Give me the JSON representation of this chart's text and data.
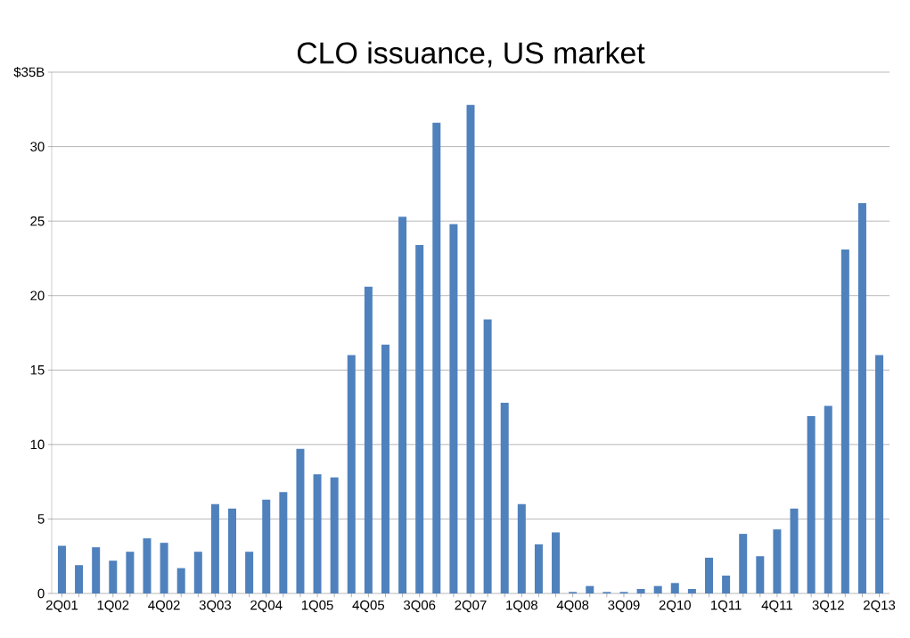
{
  "chart_data": {
    "type": "bar",
    "title": "CLO issuance, US market",
    "categories": [
      "2Q01",
      null,
      null,
      "1Q02",
      null,
      null,
      "4Q02",
      null,
      null,
      "3Q03",
      null,
      null,
      "2Q04",
      null,
      null,
      "1Q05",
      null,
      null,
      "4Q05",
      null,
      null,
      "3Q06",
      null,
      null,
      "2Q07",
      null,
      null,
      "1Q08",
      null,
      null,
      "4Q08",
      null,
      null,
      "3Q09",
      null,
      null,
      "2Q10",
      null,
      null,
      "1Q11",
      null,
      null,
      "4Q11",
      null,
      null,
      "3Q12",
      null,
      null,
      "2Q13"
    ],
    "values": [
      3.2,
      1.9,
      3.1,
      2.2,
      2.8,
      3.7,
      3.4,
      1.7,
      2.8,
      6.0,
      5.7,
      2.8,
      6.3,
      6.8,
      9.7,
      8.0,
      7.8,
      16.0,
      20.6,
      16.7,
      25.3,
      23.4,
      31.6,
      24.8,
      32.8,
      18.4,
      12.8,
      6.0,
      3.3,
      4.1,
      0.1,
      0.5,
      0.1,
      0.1,
      0.3,
      0.5,
      0.7,
      0.3,
      2.4,
      1.2,
      4.0,
      2.5,
      4.3,
      5.7,
      11.9,
      12.6,
      23.1,
      26.2,
      16.0
    ],
    "color": "#4f81bd",
    "ylim": [
      0,
      35
    ],
    "yticks": [
      0,
      5,
      10,
      15,
      20,
      25,
      30,
      {
        "value": 35,
        "label": "$35B"
      }
    ],
    "grid": "y"
  }
}
